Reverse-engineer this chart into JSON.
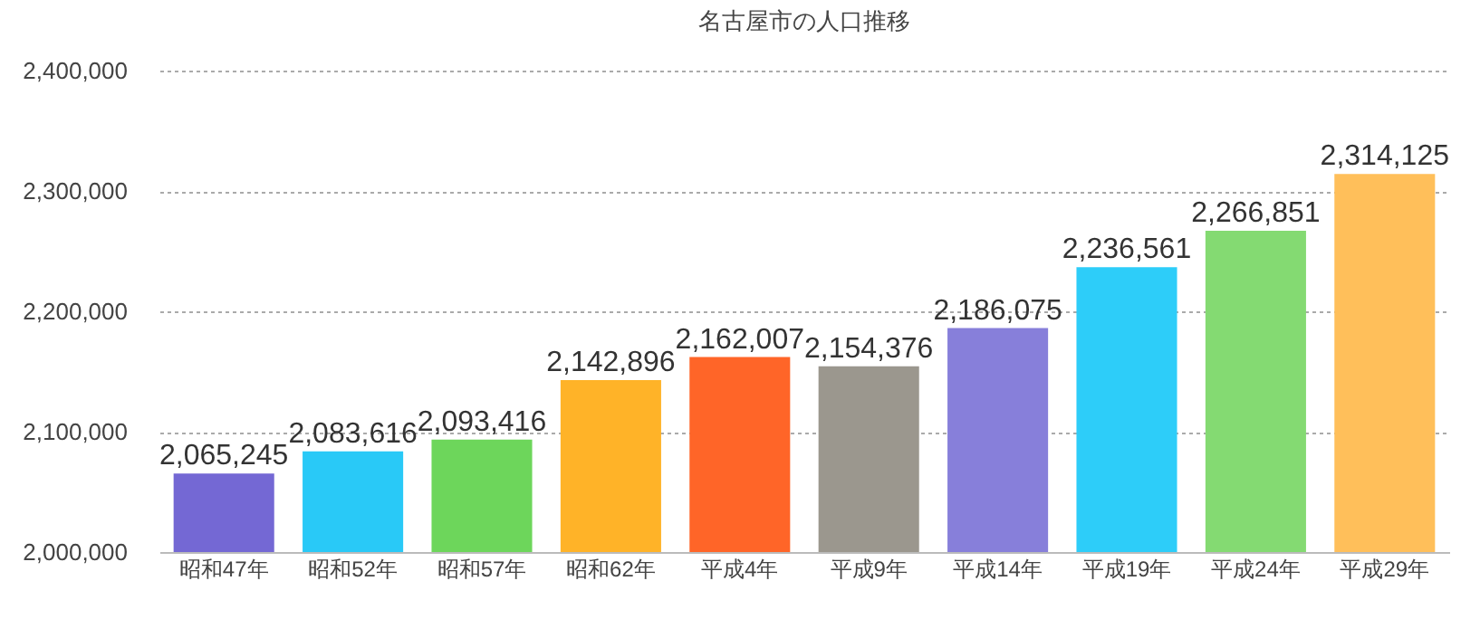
{
  "chart_data": {
    "type": "bar",
    "title": "名古屋市の人口推移",
    "categories": [
      "昭和47年",
      "昭和52年",
      "昭和57年",
      "昭和62年",
      "平成4年",
      "平成9年",
      "平成14年",
      "平成19年",
      "平成24年",
      "平成29年"
    ],
    "values": [
      2065245,
      2083616,
      2093416,
      2142896,
      2162007,
      2154376,
      2186075,
      2236561,
      2266851,
      2314125
    ],
    "value_labels": [
      "2,065,245",
      "2,083,616",
      "2,093,416",
      "2,142,896",
      "2,162,007",
      "2,154,376",
      "2,186,075",
      "2,236,561",
      "2,266,851",
      "2,314,125"
    ],
    "colors": [
      "#7468d4",
      "#29c9f7",
      "#6dd65b",
      "#ffb328",
      "#ff6528",
      "#9b978e",
      "#877fda",
      "#2dcdf9",
      "#84da72",
      "#ffbf5a"
    ],
    "ylim": [
      2000000,
      2400000
    ],
    "yticks": [
      {
        "value": 2000000,
        "label": "2,000,000"
      },
      {
        "value": 2100000,
        "label": "2,100,000"
      },
      {
        "value": 2200000,
        "label": "2,200,000"
      },
      {
        "value": 2300000,
        "label": "2,300,000"
      },
      {
        "value": 2400000,
        "label": "2,400,000"
      }
    ],
    "grid": "y"
  }
}
